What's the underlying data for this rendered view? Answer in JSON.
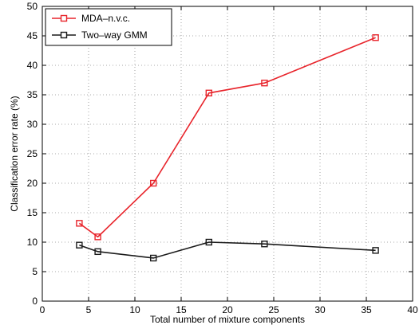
{
  "chart_data": {
    "type": "line",
    "title": "",
    "xlabel": "Total number of mixture components",
    "ylabel": "Classification error rate (%)",
    "xlim": [
      0,
      40
    ],
    "ylim": [
      0,
      50
    ],
    "xticks": [
      0,
      5,
      10,
      15,
      20,
      25,
      30,
      35,
      40
    ],
    "yticks": [
      0,
      5,
      10,
      15,
      20,
      25,
      30,
      35,
      40,
      45,
      50
    ],
    "grid": true,
    "legend_position": "top-left",
    "series": [
      {
        "name": "MDA–n.v.c.",
        "color": "#e8242b",
        "marker": "square",
        "x": [
          4,
          6,
          12,
          18,
          24,
          36
        ],
        "y": [
          13.2,
          10.9,
          20.0,
          35.3,
          37.0,
          44.7
        ]
      },
      {
        "name": "Two–way GMM",
        "color": "#1a1a1a",
        "marker": "square",
        "x": [
          4,
          6,
          12,
          18,
          24,
          36
        ],
        "y": [
          9.5,
          8.4,
          7.3,
          10.0,
          9.7,
          8.6
        ]
      }
    ]
  }
}
